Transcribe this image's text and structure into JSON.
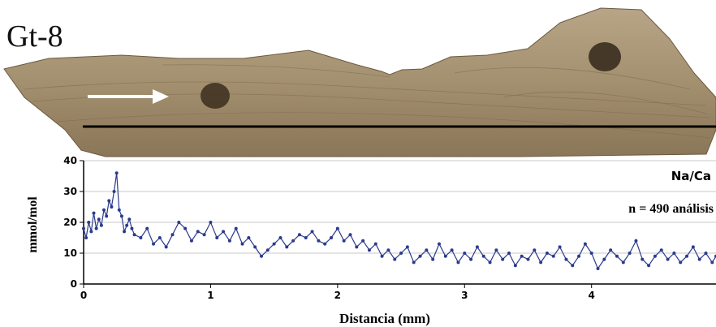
{
  "sample_label": "Gt-8",
  "chart_data": {
    "type": "line",
    "title": "",
    "series_label": "Na/Ca",
    "annotation": "n = 490 análisis",
    "xlabel": "Distancia (mm)",
    "ylabel": "mmol/mol",
    "xlim": [
      0,
      4.98
    ],
    "ylim": [
      0,
      40
    ],
    "xticks": [
      0,
      1,
      2,
      3,
      4
    ],
    "yticks": [
      0,
      10,
      20,
      30,
      40
    ],
    "grid": "horizontal",
    "marker": "circle",
    "color": "#2b3a8c",
    "n_points": 490,
    "series": [
      {
        "name": "Na/Ca",
        "points": [
          [
            0.0,
            18
          ],
          [
            0.02,
            15
          ],
          [
            0.04,
            20
          ],
          [
            0.06,
            17
          ],
          [
            0.08,
            23
          ],
          [
            0.1,
            18
          ],
          [
            0.12,
            21
          ],
          [
            0.14,
            19
          ],
          [
            0.16,
            24
          ],
          [
            0.18,
            22
          ],
          [
            0.2,
            27
          ],
          [
            0.22,
            25
          ],
          [
            0.24,
            30
          ],
          [
            0.26,
            36
          ],
          [
            0.28,
            24
          ],
          [
            0.3,
            22
          ],
          [
            0.32,
            17
          ],
          [
            0.34,
            19
          ],
          [
            0.36,
            21
          ],
          [
            0.38,
            18
          ],
          [
            0.4,
            16
          ],
          [
            0.45,
            15
          ],
          [
            0.5,
            18
          ],
          [
            0.55,
            13
          ],
          [
            0.6,
            15
          ],
          [
            0.65,
            12
          ],
          [
            0.7,
            16
          ],
          [
            0.75,
            20
          ],
          [
            0.8,
            18
          ],
          [
            0.85,
            14
          ],
          [
            0.9,
            17
          ],
          [
            0.95,
            16
          ],
          [
            1.0,
            20
          ],
          [
            1.05,
            15
          ],
          [
            1.1,
            17
          ],
          [
            1.15,
            14
          ],
          [
            1.2,
            18
          ],
          [
            1.25,
            13
          ],
          [
            1.3,
            15
          ],
          [
            1.35,
            12
          ],
          [
            1.4,
            9
          ],
          [
            1.45,
            11
          ],
          [
            1.5,
            13
          ],
          [
            1.55,
            15
          ],
          [
            1.6,
            12
          ],
          [
            1.65,
            14
          ],
          [
            1.7,
            16
          ],
          [
            1.75,
            15
          ],
          [
            1.8,
            17
          ],
          [
            1.85,
            14
          ],
          [
            1.9,
            13
          ],
          [
            1.95,
            15
          ],
          [
            2.0,
            18
          ],
          [
            2.05,
            14
          ],
          [
            2.1,
            16
          ],
          [
            2.15,
            12
          ],
          [
            2.2,
            14
          ],
          [
            2.25,
            11
          ],
          [
            2.3,
            13
          ],
          [
            2.35,
            9
          ],
          [
            2.4,
            11
          ],
          [
            2.45,
            8
          ],
          [
            2.5,
            10
          ],
          [
            2.55,
            12
          ],
          [
            2.6,
            7
          ],
          [
            2.65,
            9
          ],
          [
            2.7,
            11
          ],
          [
            2.75,
            8
          ],
          [
            2.8,
            13
          ],
          [
            2.85,
            9
          ],
          [
            2.9,
            11
          ],
          [
            2.95,
            7
          ],
          [
            3.0,
            10
          ],
          [
            3.05,
            8
          ],
          [
            3.1,
            12
          ],
          [
            3.15,
            9
          ],
          [
            3.2,
            7
          ],
          [
            3.25,
            11
          ],
          [
            3.3,
            8
          ],
          [
            3.35,
            10
          ],
          [
            3.4,
            6
          ],
          [
            3.45,
            9
          ],
          [
            3.5,
            8
          ],
          [
            3.55,
            11
          ],
          [
            3.6,
            7
          ],
          [
            3.65,
            10
          ],
          [
            3.7,
            9
          ],
          [
            3.75,
            12
          ],
          [
            3.8,
            8
          ],
          [
            3.85,
            6
          ],
          [
            3.9,
            9
          ],
          [
            3.95,
            13
          ],
          [
            4.0,
            10
          ],
          [
            4.05,
            5
          ],
          [
            4.1,
            8
          ],
          [
            4.15,
            11
          ],
          [
            4.2,
            9
          ],
          [
            4.25,
            7
          ],
          [
            4.3,
            10
          ],
          [
            4.35,
            14
          ],
          [
            4.4,
            8
          ],
          [
            4.45,
            6
          ],
          [
            4.5,
            9
          ],
          [
            4.55,
            11
          ],
          [
            4.6,
            8
          ],
          [
            4.65,
            10
          ],
          [
            4.7,
            7
          ],
          [
            4.75,
            9
          ],
          [
            4.8,
            12
          ],
          [
            4.85,
            8
          ],
          [
            4.9,
            10
          ],
          [
            4.95,
            7
          ],
          [
            4.98,
            9
          ]
        ]
      }
    ]
  }
}
